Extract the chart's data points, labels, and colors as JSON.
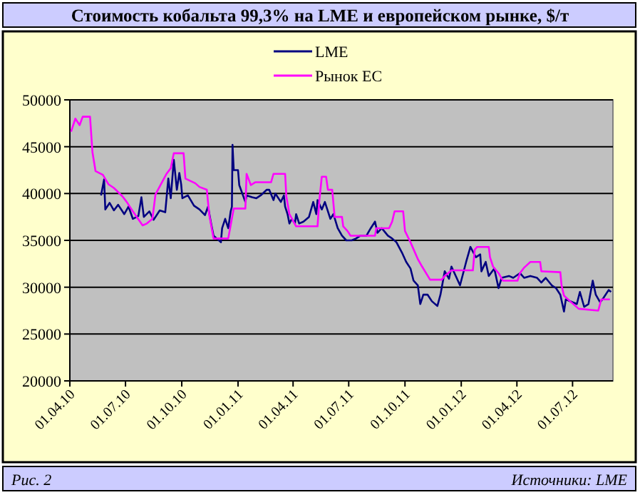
{
  "chart_data": {
    "type": "line",
    "title": "Стоимость кобальта 99,3% на LME и европейском рынке, $/т",
    "annotations": [
      "Рис. 2",
      "Источники: LME"
    ],
    "legend": "top",
    "grid": "y",
    "marker": "none",
    "line_style": "solid",
    "xlim": [
      "2010-04-01",
      "2012-09-05"
    ],
    "xticks": [
      {
        "value": "2010-04-01",
        "label": "01.04.10"
      },
      {
        "value": "2010-07-01",
        "label": "01.07.10"
      },
      {
        "value": "2010-10-01",
        "label": "01.10.10"
      },
      {
        "value": "2011-01-01",
        "label": "01.01.11"
      },
      {
        "value": "2011-04-01",
        "label": "01.04.11"
      },
      {
        "value": "2011-07-01",
        "label": "01.07.11"
      },
      {
        "value": "2011-10-01",
        "label": "01.10.11"
      },
      {
        "value": "2012-01-01",
        "label": "01.01.12"
      },
      {
        "value": "2012-04-01",
        "label": "01.04.12"
      },
      {
        "value": "2012-07-01",
        "label": "01.07.12"
      }
    ],
    "ylim": [
      20000,
      50000
    ],
    "yticks": [
      20000,
      25000,
      30000,
      35000,
      40000,
      45000,
      50000
    ],
    "series": [
      {
        "name": "LME",
        "color": "#000080",
        "x": [
          "2010-05-22",
          "2010-05-27",
          "2010-05-29",
          "2010-06-05",
          "2010-06-12",
          "2010-06-19",
          "2010-06-29",
          "2010-07-06",
          "2010-07-13",
          "2010-07-22",
          "2010-07-27",
          "2010-07-31",
          "2010-08-09",
          "2010-08-16",
          "2010-08-26",
          "2010-09-04",
          "2010-09-09",
          "2010-09-13",
          "2010-09-18",
          "2010-09-23",
          "2010-09-27",
          "2010-09-30",
          "2010-10-02",
          "2010-10-11",
          "2010-10-21",
          "2010-10-30",
          "2010-11-08",
          "2010-11-13",
          "2010-11-18",
          "2010-11-22",
          "2010-12-04",
          "2010-12-06",
          "2010-12-11",
          "2010-12-16",
          "2010-12-20",
          "2010-12-22",
          "2010-12-23",
          "2010-12-25",
          "2011-01-01",
          "2011-01-03",
          "2011-01-13",
          "2011-01-15",
          "2011-01-24",
          "2011-01-31",
          "2011-02-07",
          "2011-02-17",
          "2011-02-21",
          "2011-02-28",
          "2011-03-03",
          "2011-03-12",
          "2011-03-17",
          "2011-03-19",
          "2011-03-23",
          "2011-03-26",
          "2011-03-30",
          "2011-04-04",
          "2011-04-06",
          "2011-04-11",
          "2011-04-18",
          "2011-04-27",
          "2011-05-04",
          "2011-05-09",
          "2011-05-11",
          "2011-05-18",
          "2011-05-23",
          "2011-06-01",
          "2011-06-06",
          "2011-06-13",
          "2011-06-20",
          "2011-06-27",
          "2011-07-06",
          "2011-07-13",
          "2011-07-20",
          "2011-07-30",
          "2011-08-06",
          "2011-08-13",
          "2011-08-17",
          "2011-08-24",
          "2011-09-03",
          "2011-09-10",
          "2011-09-17",
          "2011-09-26",
          "2011-10-03",
          "2011-10-10",
          "2011-10-15",
          "2011-10-22",
          "2011-10-26",
          "2011-10-31",
          "2011-11-07",
          "2011-11-14",
          "2011-11-23",
          "2011-11-28",
          "2011-12-05",
          "2011-12-12",
          "2011-12-16",
          "2011-12-30",
          "2012-01-09",
          "2012-01-16",
          "2012-01-20",
          "2012-01-25",
          "2012-02-01",
          "2012-02-03",
          "2012-02-10",
          "2012-02-15",
          "2012-02-24",
          "2012-03-02",
          "2012-03-07",
          "2012-03-19",
          "2012-03-26",
          "2012-04-06",
          "2012-04-13",
          "2012-04-23",
          "2012-05-04",
          "2012-05-11",
          "2012-05-18",
          "2012-05-28",
          "2012-06-04",
          "2012-06-11",
          "2012-06-17",
          "2012-06-20",
          "2012-07-01",
          "2012-07-08",
          "2012-07-13",
          "2012-07-20",
          "2012-07-27",
          "2012-08-03",
          "2012-08-08",
          "2012-08-15",
          "2012-08-19",
          "2012-08-29",
          "2012-09-02"
        ],
        "values": [
          39800,
          41500,
          38300,
          39000,
          38200,
          38800,
          37800,
          38600,
          37300,
          37600,
          39600,
          37500,
          38100,
          37200,
          38200,
          38000,
          41600,
          39500,
          43600,
          40400,
          42200,
          41000,
          39500,
          39800,
          38700,
          38300,
          37700,
          38600,
          36800,
          35500,
          34800,
          36300,
          37300,
          36300,
          38100,
          38600,
          45200,
          42500,
          42500,
          40900,
          39100,
          39800,
          39600,
          39500,
          39800,
          40400,
          40400,
          39300,
          40000,
          39100,
          39800,
          38600,
          37800,
          36800,
          37300,
          36800,
          37800,
          36800,
          37000,
          37500,
          39100,
          37800,
          39300,
          38300,
          39100,
          37300,
          37800,
          36300,
          35500,
          35000,
          35000,
          35200,
          35500,
          35500,
          36300,
          37000,
          35800,
          36300,
          35500,
          35200,
          34800,
          33700,
          32700,
          32000,
          30700,
          30200,
          28200,
          29200,
          29200,
          28500,
          28000,
          29200,
          31700,
          30900,
          32200,
          30200,
          32700,
          34300,
          33800,
          33200,
          33500,
          31700,
          32700,
          31200,
          32000,
          29900,
          31000,
          31200,
          31000,
          31500,
          31000,
          31200,
          31000,
          30500,
          31000,
          30200,
          29900,
          29200,
          27400,
          28700,
          28400,
          28200,
          29500,
          27900,
          28200,
          30700,
          29200,
          28400,
          28700,
          29700,
          29500
        ]
      },
      {
        "name": "Рынок ЕС",
        "color": "#ff00ff",
        "x": [
          "2010-04-03",
          "2010-04-10",
          "2010-04-17",
          "2010-04-22",
          "2010-05-04",
          "2010-05-08",
          "2010-05-13",
          "2010-05-25",
          "2010-06-03",
          "2010-06-12",
          "2010-06-26",
          "2010-07-03",
          "2010-07-13",
          "2010-07-29",
          "2010-08-05",
          "2010-08-14",
          "2010-08-19",
          "2010-09-06",
          "2010-09-13",
          "2010-09-18",
          "2010-10-04",
          "2010-10-07",
          "2010-10-23",
          "2010-10-30",
          "2010-11-11",
          "2010-11-15",
          "2010-11-22",
          "2010-12-16",
          "2010-12-25",
          "2011-01-13",
          "2011-01-15",
          "2011-01-22",
          "2011-01-29",
          "2011-02-24",
          "2011-02-28",
          "2011-03-19",
          "2011-03-21",
          "2011-03-26",
          "2011-04-06",
          "2011-05-11",
          "2011-05-14",
          "2011-05-18",
          "2011-05-25",
          "2011-05-28",
          "2011-06-04",
          "2011-06-08",
          "2011-06-20",
          "2011-06-22",
          "2011-06-29",
          "2011-07-04",
          "2011-08-13",
          "2011-08-15",
          "2011-09-05",
          "2011-09-10",
          "2011-09-14",
          "2011-09-28",
          "2011-10-01",
          "2011-10-10",
          "2011-10-22",
          "2011-10-29",
          "2011-11-11",
          "2011-11-30",
          "2011-12-05",
          "2011-12-16",
          "2012-01-20",
          "2012-01-23",
          "2012-01-27",
          "2012-02-15",
          "2012-02-17",
          "2012-02-22",
          "2012-03-02",
          "2012-03-09",
          "2012-04-02",
          "2012-04-06",
          "2012-04-13",
          "2012-04-23",
          "2012-05-09",
          "2012-05-11",
          "2012-06-11",
          "2012-06-13",
          "2012-06-17",
          "2012-06-27",
          "2012-07-11",
          "2012-08-12",
          "2012-08-17",
          "2012-08-31"
        ],
        "values": [
          46600,
          48000,
          47300,
          48200,
          48200,
          44400,
          42400,
          42000,
          41000,
          40600,
          39700,
          39100,
          38100,
          36600,
          36800,
          37300,
          39900,
          42100,
          42700,
          44300,
          44300,
          41600,
          41100,
          40700,
          40400,
          37700,
          35200,
          35200,
          38400,
          38400,
          42100,
          40900,
          41200,
          41200,
          42100,
          42100,
          39700,
          37800,
          36500,
          36500,
          39300,
          41800,
          41800,
          40400,
          40400,
          37500,
          37500,
          36500,
          36000,
          35500,
          35500,
          36300,
          36300,
          37000,
          38100,
          38100,
          36000,
          34800,
          33000,
          32200,
          30800,
          30800,
          31200,
          31800,
          31800,
          34000,
          34300,
          34300,
          33200,
          32200,
          31500,
          30700,
          30700,
          31500,
          32100,
          32700,
          32700,
          31700,
          31600,
          30200,
          29100,
          28500,
          27700,
          27500,
          28700,
          28700
        ]
      }
    ]
  }
}
